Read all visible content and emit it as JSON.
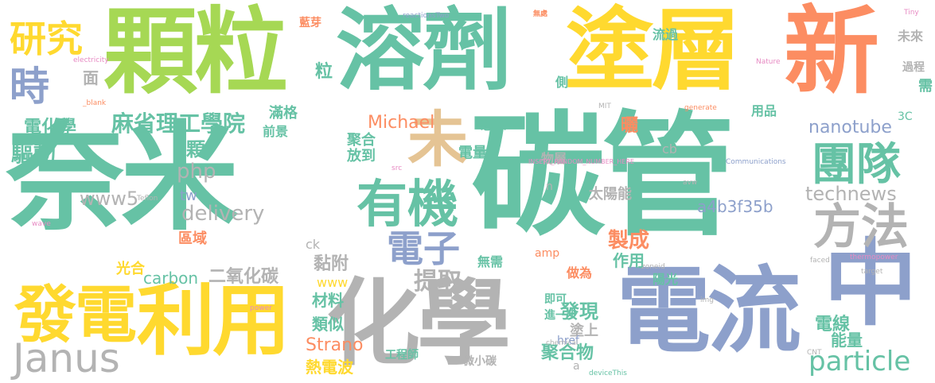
{
  "palette": {
    "green": "#66c2a5",
    "orange": "#fc8d62",
    "blue": "#8da0cb",
    "pink": "#e78ac3",
    "lime": "#a6d854",
    "yellow": "#ffd92f",
    "tan": "#e5c494",
    "grey": "#b3b3b3"
  },
  "words": [
    "奈米",
    "碳管",
    "電流",
    "化學",
    "溶劑",
    "塗層",
    "新",
    "顆粒",
    "中",
    "利用",
    "發電",
    "研究",
    "時",
    "未",
    "有機",
    "團隊",
    "方法",
    "電子",
    "Janus",
    "麻省理工學院",
    "電化學",
    "驅動",
    "php",
    "www5",
    "delivery",
    "particle",
    "technews",
    "nanotube",
    "carbon",
    "二氧化碳",
    "提取",
    "Strano",
    "Michael",
    "黏附",
    "材料",
    "類似",
    "熱電波",
    "發現",
    "塗上",
    "聚合物",
    "電線",
    "能量",
    "工程師",
    "製成",
    "太陽能",
    "a4b3f35b",
    "作用",
    "光合",
    "區域",
    "顆",
    "面",
    "粒",
    "滿格",
    "前景",
    "聚合",
    "放到",
    "電量",
    "物層",
    "用品",
    "需",
    "3C",
    "cb",
    "amp",
    "ck",
    "www",
    "tw",
    "href",
    "無需",
    "即可",
    "進一步",
    "做為",
    "陽光",
    "曬",
    "想像",
    "流過",
    "過程",
    "未來",
    "側",
    "藍芽",
    "微小碳",
    "reactionsTwo",
    "無處",
    "Tiny",
    "electricity",
    "Nature",
    "MIT",
    "generate",
    "Communications",
    "Teflon",
    "avw",
    "faced",
    "zoneid",
    "thermopower",
    "target",
    "img",
    "chemical",
    "CNT",
    "deviceThis",
    "src",
    "power",
    "wave",
    "_blank",
    "INSERT_RANDOM_NUMBER_HERE",
    "n",
    "a"
  ]
}
